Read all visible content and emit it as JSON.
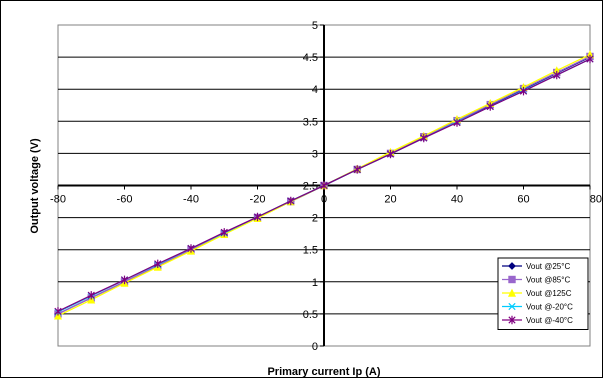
{
  "chart_data": {
    "type": "line",
    "title": "",
    "xlabel": "Primary current Ip (A)",
    "ylabel": "Output voltage (V)",
    "xlim": [
      -80,
      80
    ],
    "ylim": [
      0,
      5
    ],
    "x_ticks": [
      "-80",
      "-60",
      "-40",
      "-20",
      "0",
      "20",
      "40",
      "60",
      "80"
    ],
    "y_ticks": [
      "0",
      "0.5",
      "1",
      "1.5",
      "2",
      "2.5",
      "3",
      "3.5",
      "4",
      "4.5",
      "5"
    ],
    "grid": "horizontal",
    "legend_position": "bottom-right",
    "x": [
      -80,
      -70,
      -60,
      -50,
      -40,
      -30,
      -20,
      -10,
      0,
      10,
      20,
      30,
      40,
      50,
      60,
      70,
      80
    ],
    "series": [
      {
        "name": "Vout @25°C",
        "color": "#000080",
        "marker": "diamond",
        "values": [
          0.5,
          0.75,
          1.0,
          1.25,
          1.5,
          1.75,
          2.0,
          2.25,
          2.5,
          2.75,
          3.0,
          3.25,
          3.5,
          3.75,
          4.0,
          4.25,
          4.5
        ]
      },
      {
        "name": "Vout @85°C",
        "color": "#9966CC",
        "marker": "square",
        "values": [
          0.5,
          0.75,
          1.0,
          1.25,
          1.5,
          1.75,
          2.0,
          2.25,
          2.5,
          2.75,
          3.0,
          3.26,
          3.51,
          3.76,
          4.01,
          4.26,
          4.51
        ]
      },
      {
        "name": "Vout @125C",
        "color": "#FFFF00",
        "marker": "triangle",
        "values": [
          0.47,
          0.72,
          0.98,
          1.23,
          1.48,
          1.74,
          1.99,
          2.25,
          2.5,
          2.76,
          3.02,
          3.27,
          3.53,
          3.78,
          4.03,
          4.29,
          4.54
        ]
      },
      {
        "name": "Vout @-20°C",
        "color": "#00CCFF",
        "marker": "x",
        "values": [
          0.53,
          0.78,
          1.03,
          1.27,
          1.52,
          1.76,
          2.01,
          2.26,
          2.5,
          2.75,
          2.99,
          3.24,
          3.49,
          3.73,
          3.98,
          4.22,
          4.47
        ]
      },
      {
        "name": "Vout @-40°C",
        "color": "#800080",
        "marker": "star",
        "values": [
          0.54,
          0.79,
          1.03,
          1.28,
          1.52,
          1.77,
          2.01,
          2.26,
          2.5,
          2.75,
          2.99,
          3.24,
          3.48,
          3.73,
          3.97,
          4.22,
          4.47
        ]
      }
    ]
  }
}
